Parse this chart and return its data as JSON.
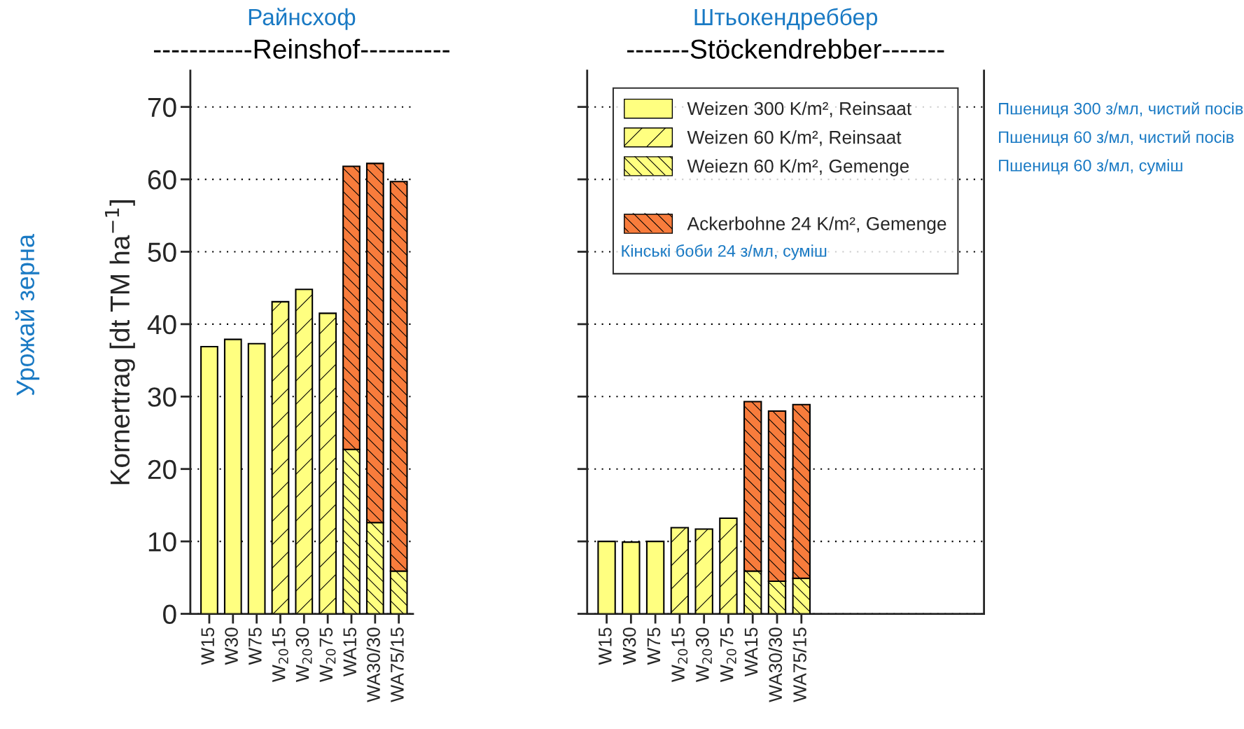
{
  "chart_data": [
    {
      "type": "bar",
      "stacked": true,
      "title": "Райнсхоф",
      "subtitle": "-----------Reinshof----------",
      "ylabel": "Kornertrag [dt TM ha$^{−1}$]",
      "categories": [
        "W15",
        "W30",
        "W75",
        "W$_{20}$15",
        "W$_{20}$30",
        "W$_{20}$75",
        "WA15",
        "WA30/30",
        "WA75/15"
      ],
      "series": [
        {
          "color": "#ffff80",
          "values": [
            36.9,
            37.9,
            37.3,
            null,
            null,
            null,
            null,
            null,
            null
          ]
        },
        {
          "color": "#ffff80",
          "values": [
            null,
            null,
            null,
            43.1,
            44.8,
            41.5,
            null,
            null,
            null
          ]
        },
        {
          "color": "#ffff80",
          "values": [
            null,
            null,
            null,
            null,
            null,
            null,
            22.7,
            12.6,
            5.9
          ]
        },
        {
          "color": "#f87c3c",
          "values": [
            null,
            null,
            null,
            null,
            null,
            null,
            39.1,
            49.6,
            53.8
          ]
        }
      ],
      "ylim": [
        0,
        75
      ],
      "yticks": [
        0,
        10,
        20,
        30,
        40,
        50,
        60,
        70
      ],
      "grid": "y",
      "annotations": [
        "Урожай зерна"
      ]
    },
    {
      "type": "bar",
      "stacked": true,
      "title": "Штьокендреббер",
      "subtitle": "-------Stöckendrebber-------",
      "categories": [
        "W15",
        "W30",
        "W75",
        "W$_{20}$15",
        "W$_{20}$30",
        "W$_{20}$75",
        "WA15",
        "WA30/30",
        "WA75/15"
      ],
      "series": [
        {
          "name": "Weizen 300 K/m², Reinsaat",
          "color": "#ffff80",
          "values": [
            10.0,
            9.9,
            10.0,
            null,
            null,
            null,
            null,
            null,
            null
          ]
        },
        {
          "name": "Weizen 60 K/m², Reinsaat",
          "color": "#ffff80",
          "values": [
            null,
            null,
            null,
            11.9,
            11.7,
            13.2,
            null,
            null,
            null
          ]
        },
        {
          "name": "Weiezn 60 K/m², Gemenge",
          "color": "#ffff80",
          "values": [
            null,
            null,
            null,
            null,
            null,
            null,
            5.9,
            4.5,
            4.9
          ]
        },
        {
          "name": "Ackerbohne 24 K/m², Gemenge",
          "color": "#f87c3c",
          "values": [
            null,
            null,
            null,
            null,
            null,
            null,
            23.4,
            23.5,
            24.0
          ]
        }
      ],
      "ylim": [
        0,
        75
      ],
      "yticks": [
        0,
        10,
        20,
        30,
        40,
        50,
        60,
        70
      ],
      "grid": "y",
      "tick_labels": "x",
      "legend": "top",
      "annotations": [
        "Пшениця 300 з/мл, чистий посів",
        "Пшениця 60 з/мл, чистий посів",
        "Пшениця 60 з/мл, суміш",
        "Кінські боби 24 з/мл, суміш"
      ]
    }
  ]
}
